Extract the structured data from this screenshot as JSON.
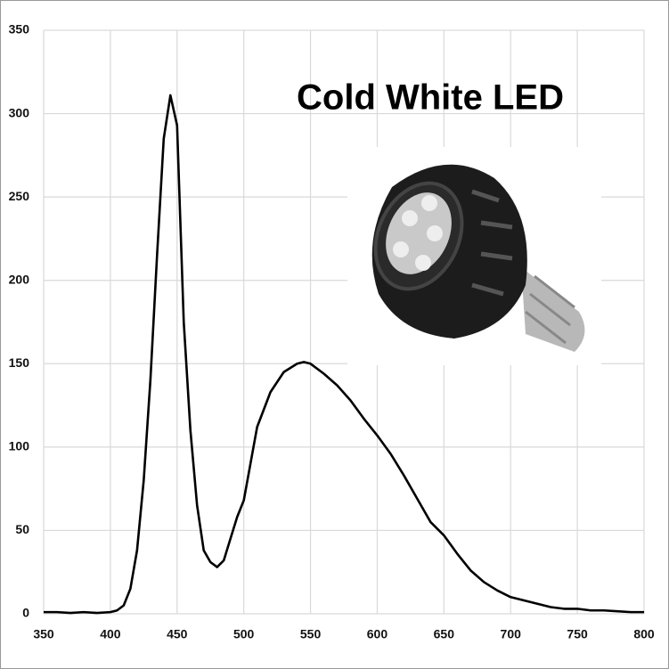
{
  "chart_data": {
    "type": "line",
    "title": "Cold White LED",
    "x": [
      350,
      360,
      370,
      380,
      390,
      400,
      405,
      410,
      415,
      420,
      425,
      430,
      435,
      440,
      445,
      450,
      455,
      460,
      465,
      470,
      475,
      480,
      485,
      490,
      495,
      500,
      510,
      520,
      530,
      540,
      545,
      550,
      560,
      570,
      580,
      590,
      600,
      610,
      620,
      630,
      640,
      650,
      660,
      670,
      680,
      690,
      700,
      710,
      720,
      730,
      740,
      750,
      760,
      770,
      780,
      790,
      800
    ],
    "series": [
      {
        "color": "#000000",
        "values": [
          1,
          1,
          0.5,
          1,
          0.5,
          1,
          2,
          5,
          15,
          38,
          80,
          140,
          215,
          285,
          311,
          293,
          175,
          110,
          65,
          38,
          31,
          28,
          32,
          45,
          58,
          68,
          112,
          133,
          145,
          150,
          151,
          150,
          144,
          137,
          128,
          117,
          107,
          96,
          83,
          69,
          55,
          47,
          36,
          26,
          19,
          14,
          10,
          8,
          6,
          4,
          3,
          3,
          2,
          2,
          1.5,
          1,
          1
        ]
      }
    ],
    "xlim": [
      350,
      800
    ],
    "ylim": [
      0,
      350
    ],
    "xticks": [
      350,
      400,
      450,
      500,
      550,
      600,
      650,
      700,
      750,
      800
    ],
    "yticks": [
      0,
      50,
      100,
      150,
      200,
      250,
      300,
      350
    ],
    "grid": true
  }
}
